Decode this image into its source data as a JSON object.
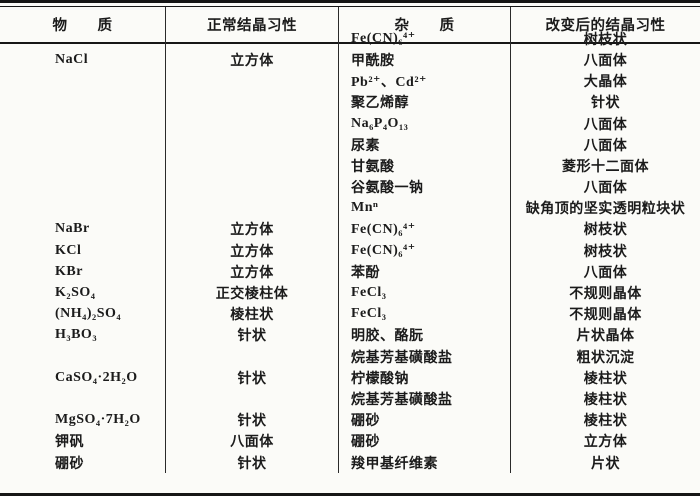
{
  "document": {
    "type": "scanned-book-table",
    "language": "zh-CN",
    "topic": "改变结晶习性的杂质对照表"
  },
  "colors": {
    "background": "#fbfbf8",
    "text": "#1b1b1b",
    "rule": "#161616"
  },
  "table": {
    "headers": [
      "物　　质",
      "正常结晶习性",
      "杂　　质",
      "改变后的结晶习性"
    ],
    "rows": [
      [
        "",
        "",
        "Fe(CN)₆⁴⁺",
        "树枝状"
      ],
      [
        "NaCl",
        "立方体",
        "甲酰胺",
        "八面体"
      ],
      [
        "",
        "",
        "Pb²⁺、Cd²⁺",
        "大晶体"
      ],
      [
        "",
        "",
        "聚乙烯醇",
        "针状"
      ],
      [
        "",
        "",
        "Na₆P₄O₁₃",
        "八面体"
      ],
      [
        "",
        "",
        "尿素",
        "八面体"
      ],
      [
        "",
        "",
        "甘氨酸",
        "菱形十二面体"
      ],
      [
        "",
        "",
        "谷氨酸一钠",
        "八面体"
      ],
      [
        "",
        "",
        "Mnⁿ",
        "缺角顶的坚实透明粒块状"
      ],
      [
        "NaBr",
        "立方体",
        "Fe(CN)₆⁴⁺",
        "树枝状"
      ],
      [
        "KCl",
        "立方体",
        "Fe(CN)₆⁴⁺",
        "树枝状"
      ],
      [
        "KBr",
        "立方体",
        "苯酚",
        "八面体"
      ],
      [
        "K₂SO₄",
        "正交棱柱体",
        "FeCl₃",
        "不规则晶体"
      ],
      [
        "(NH₄)₂SO₄",
        "棱柱状",
        "FeCl₃",
        "不规则晶体"
      ],
      [
        "H₃BO₃",
        "针状",
        "明胶、酪朊",
        "片状晶体"
      ],
      [
        "",
        "",
        "烷基芳基磺酸盐",
        "粗状沉淀"
      ],
      [
        "CaSO₄·2H₂O",
        "针状",
        "柠檬酸钠",
        "棱柱状"
      ],
      [
        "",
        "",
        "烷基芳基磺酸盐",
        "棱柱状"
      ],
      [
        "MgSO₄·7H₂O",
        "针状",
        "硼砂",
        "棱柱状"
      ],
      [
        "钾矾",
        "八面体",
        "硼砂",
        "立方体"
      ],
      [
        "硼砂",
        "针状",
        "羧甲基纤维素",
        "片状"
      ]
    ]
  }
}
